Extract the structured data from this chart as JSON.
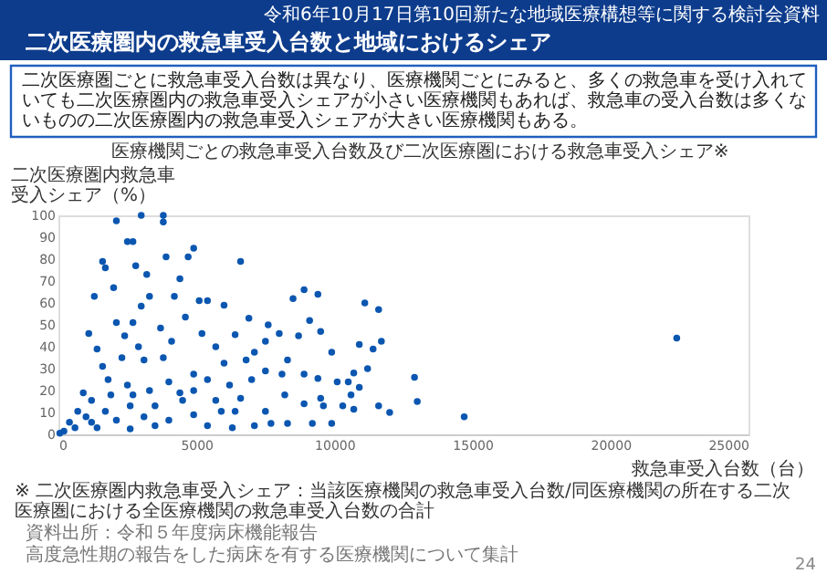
{
  "chart_data": {
    "type": "scatter",
    "title": "二次医療圏内の救急車受入台数と地域におけるシェア",
    "subtitle": "医療機関ごとの救急車受入台数及び二次医療圏における救急車受入シェア※",
    "xlabel": "救急車受入台数（台）",
    "ylabel": "二次医療圏内救急車受入シェア（%）",
    "annotations": [
      "令和6年10月17日第10回新たな地域医療構想等に関する検討会資料",
      "二次医療圏ごとに救急車受入台数は異なり、医療機関ごとにみると、多くの救急車を受け入れていても二次医療圏内の救急車受入シェアが小さい医療機関もあれば、救急車の受入台数は多くないものの二次医療圏内の救急車受入シェアが大きい医療機関もある。",
      "※ 二次医療圏内救急車受入シェア：当該医療機関の救急車受入台数/同医療機関の所在する二次医療圏における全医療機関の救急車受入台数の合計",
      "資料出所：令和５年度病床機能報告",
      "高度急性期の報告をした病床を有する医療機関について集計",
      "24"
    ],
    "x": [
      2100,
      3000,
      3800,
      3800,
      2500,
      2700,
      1600,
      1700,
      3900,
      4700,
      4900,
      6600,
      1300,
      2000,
      2800,
      3200,
      4400,
      3000,
      3300,
      4200,
      5100,
      5400,
      6000,
      6900,
      7600,
      8500,
      8900,
      9400,
      9100,
      9500,
      11100,
      11600,
      11700,
      11400,
      10900,
      9900,
      1100,
      1400,
      2100,
      2400,
      2700,
      2900,
      3700,
      4100,
      4600,
      5200,
      5700,
      6400,
      7500,
      8000,
      8700,
      7100,
      8300,
      1600,
      2300,
      3100,
      3800,
      4900,
      6000,
      6800,
      7500,
      8100,
      8900,
      9400,
      10100,
      10500,
      10700,
      10600,
      10900,
      11200,
      9500,
      9900,
      9200,
      8300,
      7700,
      7500,
      8200,
      8900,
      9600,
      10300,
      10700,
      11600,
      7100,
      6400,
      5700,
      4900,
      4000,
      3300,
      2500,
      1900,
      1200,
      700,
      400,
      200,
      50,
      600,
      1200,
      2100,
      3100,
      4000,
      4900,
      5900,
      4500,
      3500,
      2600,
      1700,
      1000,
      1400,
      2600,
      3500,
      5400,
      6300,
      900,
      1800,
      2700,
      4400,
      5400,
      6200,
      7000,
      6600,
      12000,
      12900,
      13000,
      14700,
      22400
    ],
    "values": [
      97.5,
      100,
      100,
      97,
      88,
      88,
      79,
      76,
      81,
      81,
      85,
      79,
      63,
      67,
      77,
      73,
      71,
      58.5,
      63,
      63,
      61,
      61,
      59,
      53,
      50,
      62,
      66,
      64,
      52,
      47,
      60,
      57,
      42.5,
      39,
      41,
      37.5,
      46,
      39,
      51,
      45,
      51,
      40,
      48.5,
      42.5,
      53.5,
      46,
      40,
      45.5,
      42.5,
      46,
      45,
      37.5,
      34,
      31,
      35,
      34,
      35,
      27.5,
      32.5,
      34,
      29,
      27.5,
      27.5,
      25.5,
      24,
      24,
      28,
      18,
      21.5,
      30,
      16.5,
      5,
      5,
      5,
      5,
      10.5,
      18,
      14,
      13,
      13,
      11.5,
      13,
      4,
      10.5,
      15.5,
      20,
      24,
      20,
      22.5,
      18,
      15.5,
      10.5,
      5.5,
      1.5,
      0.5,
      3,
      5.5,
      6.5,
      8,
      6.5,
      9,
      10.5,
      15.5,
      13,
      13,
      10.5,
      8,
      3,
      2.5,
      4,
      4,
      3,
      19,
      25,
      18,
      19,
      25,
      22.5,
      25,
      16.5,
      10,
      26,
      15,
      8,
      44
    ],
    "color": "#0b56b0",
    "marker": "circle",
    "xlim": [
      0,
      25000
    ],
    "xticks": [
      0,
      5000,
      10000,
      15000,
      20000,
      25000
    ],
    "ylim": [
      0,
      100
    ],
    "yticks": [
      0,
      10,
      20,
      30,
      40,
      50,
      60,
      70,
      80,
      90,
      100
    ],
    "grid": false
  }
}
